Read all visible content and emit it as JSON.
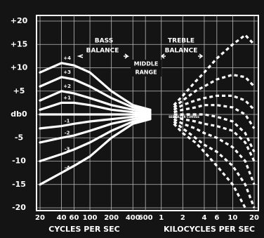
{
  "chart_data": {
    "type": "line",
    "x_axis_labels": [
      "CYCLES PER SEC",
      "KILOCYCLES PER SEC"
    ],
    "annotations": [
      "BASS",
      "BALANCE",
      "MIDDLE",
      "RANGE",
      "TREBLE",
      "BALANCE",
      "SEE FILTER CURVES"
    ],
    "xscale": "log",
    "xlim": [
      20,
      20000
    ],
    "ylim": [
      -20,
      20
    ],
    "xticks": [
      20,
      40,
      60,
      100,
      200,
      400,
      600,
      {
        "value": 1000,
        "label": "1"
      },
      {
        "value": 2000,
        "label": "2"
      },
      {
        "value": 4000,
        "label": "4"
      },
      {
        "value": 6000,
        "label": "6"
      },
      {
        "value": 10000,
        "label": "10"
      },
      {
        "value": 20000,
        "label": "20"
      }
    ],
    "yticks": [
      {
        "value": 20,
        "label": "+20"
      },
      {
        "value": 15,
        "label": "+15"
      },
      {
        "value": 10,
        "label": "+10"
      },
      {
        "value": 5,
        "label": "+5"
      },
      {
        "value": 0,
        "label": "db0"
      },
      -5,
      -10,
      -15,
      -20
    ],
    "grid": true,
    "color": "#ffffff",
    "series": [
      {
        "name": "+4",
        "style": "solid",
        "x": [
          20,
          40,
          60,
          100,
          200,
          400,
          700
        ],
        "values": [
          9,
          11,
          10.5,
          9,
          5,
          2,
          1
        ]
      },
      {
        "name": "+3",
        "style": "solid",
        "x": [
          20,
          40,
          60,
          100,
          200,
          400,
          700
        ],
        "values": [
          6,
          8,
          7.5,
          6,
          3.5,
          1.5,
          0.8
        ]
      },
      {
        "name": "+2",
        "style": "solid",
        "x": [
          20,
          40,
          60,
          100,
          200,
          400,
          700
        ],
        "values": [
          3,
          5,
          4.5,
          3.5,
          2,
          1,
          0.5
        ]
      },
      {
        "name": "+1",
        "style": "solid",
        "x": [
          20,
          40,
          60,
          100,
          200,
          400,
          700
        ],
        "values": [
          1,
          2.5,
          2.5,
          2,
          1,
          0.5,
          0.2
        ]
      },
      {
        "style": "solid",
        "x": [
          20,
          40,
          60,
          100,
          200,
          400,
          700
        ],
        "values": [
          0,
          0,
          0,
          0,
          0,
          0,
          0
        ]
      },
      {
        "name": "-1",
        "style": "solid",
        "x": [
          20,
          40,
          60,
          100,
          200,
          400,
          700
        ],
        "values": [
          -3,
          -2.5,
          -2,
          -1.5,
          -1,
          -0.5,
          -0.2
        ]
      },
      {
        "name": "-2",
        "style": "solid",
        "x": [
          20,
          40,
          60,
          100,
          200,
          400,
          700
        ],
        "values": [
          -6,
          -5,
          -4.5,
          -3.5,
          -2,
          -1,
          -0.5
        ]
      },
      {
        "name": "-3",
        "style": "solid",
        "x": [
          20,
          40,
          60,
          100,
          200,
          400,
          700
        ],
        "values": [
          -10,
          -8.5,
          -7.5,
          -6,
          -3.5,
          -1.5,
          -0.8
        ]
      },
      {
        "name": "-4",
        "style": "solid",
        "x": [
          20,
          40,
          60,
          100,
          200,
          400,
          700
        ],
        "values": [
          -15,
          -12.5,
          -11,
          -9,
          -5,
          -2,
          -1
        ]
      },
      {
        "style": "dotted",
        "x": [
          1500,
          2000,
          3000,
          4000,
          6000,
          10000,
          15000,
          20000
        ],
        "values": [
          2,
          4,
          7,
          9,
          12,
          15,
          17,
          15
        ]
      },
      {
        "style": "dotted",
        "x": [
          1500,
          2000,
          3000,
          4000,
          6000,
          10000,
          15000,
          20000
        ],
        "values": [
          1.5,
          3,
          5,
          6,
          7.5,
          8.5,
          8,
          6
        ]
      },
      {
        "style": "dotted",
        "x": [
          1500,
          2000,
          3000,
          4000,
          6000,
          10000,
          15000,
          20000
        ],
        "values": [
          1,
          2,
          3,
          3.5,
          4,
          4,
          3,
          1
        ]
      },
      {
        "style": "dotted",
        "x": [
          1500,
          2000,
          3000,
          4000,
          6000,
          10000,
          15000,
          20000
        ],
        "values": [
          0.5,
          1,
          1.5,
          2,
          2,
          1.5,
          0,
          -3
        ]
      },
      {
        "style": "dotted",
        "x": [
          1500,
          2000,
          3000,
          4000,
          6000,
          10000,
          15000,
          20000
        ],
        "values": [
          0,
          0,
          0,
          0,
          -0.5,
          -1.5,
          -4,
          -8
        ]
      },
      {
        "style": "dotted",
        "x": [
          1500,
          2000,
          3000,
          4000,
          6000,
          10000,
          15000,
          20000
        ],
        "values": [
          -0.5,
          -1,
          -1.5,
          -2,
          -2.5,
          -3.5,
          -6,
          -10
        ]
      },
      {
        "style": "dotted",
        "x": [
          1500,
          2000,
          3000,
          4000,
          6000,
          10000,
          15000,
          20000
        ],
        "values": [
          -1,
          -2,
          -3,
          -4,
          -5,
          -7,
          -10,
          -15
        ]
      },
      {
        "style": "dotted",
        "x": [
          1500,
          2000,
          3000,
          4000,
          6000,
          10000,
          15000,
          20000
        ],
        "values": [
          -1.5,
          -3,
          -5,
          -6.5,
          -8,
          -11,
          -15,
          -20
        ]
      },
      {
        "style": "dotted",
        "x": [
          1500,
          2000,
          3000,
          4000,
          6000,
          10000,
          15000
        ],
        "values": [
          -2,
          -4,
          -6,
          -8,
          -11,
          -15,
          -20
        ]
      }
    ]
  }
}
